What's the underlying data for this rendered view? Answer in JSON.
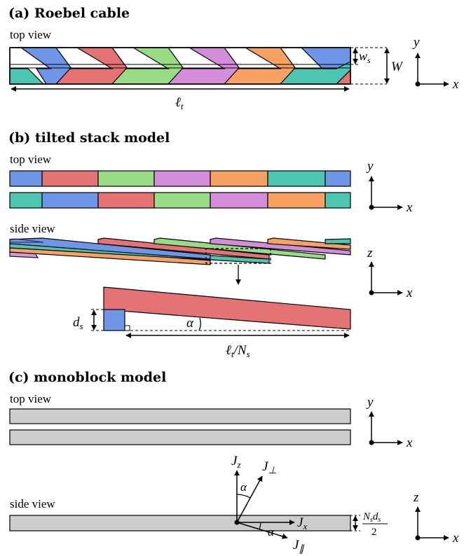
{
  "sections": {
    "a": {
      "title": "(a) Roebel cable",
      "view": "top view"
    },
    "b": {
      "title": "(b) tilted stack model",
      "top_view": "top view",
      "side_view": "side view"
    },
    "c": {
      "title": "(c) monoblock model",
      "top_view": "top view",
      "side_view": "side view"
    }
  },
  "symbols": {
    "ws": "w",
    "ws_sub": "s",
    "W": "W",
    "lt": "ℓ",
    "lt_sub": "t",
    "ds": "d",
    "ds_sub": "s",
    "alpha": "α",
    "ltNs_a": "ℓ",
    "ltNs_b": "t",
    "ltNs_c": "/N",
    "ltNs_d": "s",
    "frac_num_a": "N",
    "frac_num_b": "s",
    "frac_num_c": "d",
    "frac_num_d": "s",
    "frac_den": "2",
    "Jz": "J",
    "Jz_sub": "z",
    "Jperp": "J",
    "Jperp_sub": "⊥",
    "Jx": "J",
    "Jx_sub": "x",
    "Jpar": "J",
    "Jpar_sub": "∥"
  },
  "axes": {
    "a": {
      "v": "y",
      "h": "x"
    },
    "b_top": {
      "v": "y",
      "h": "x"
    },
    "b_side": {
      "v": "z",
      "h": "x"
    },
    "c_top": {
      "v": "y",
      "h": "x"
    },
    "c_side": {
      "v": "z",
      "h": "x"
    }
  },
  "colors": {
    "blue": "#6e95e6",
    "red": "#e57373",
    "green": "#98db84",
    "purple": "#d48ed9",
    "orange": "#f7a263",
    "teal": "#4cc6b1",
    "gray": "#cccccc",
    "stroke": "#000000"
  }
}
